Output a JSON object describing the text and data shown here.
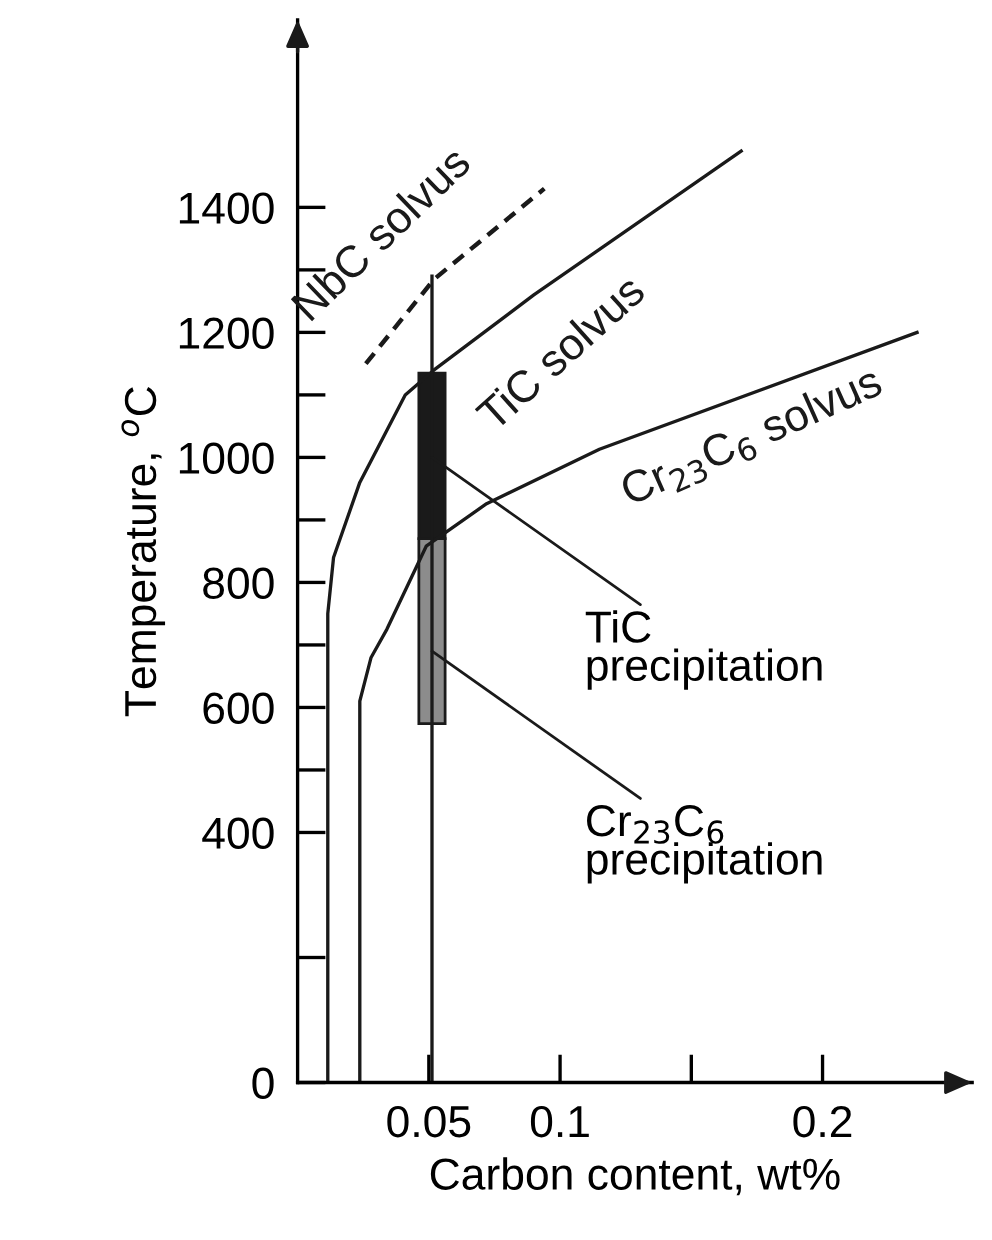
{
  "chart_data": {
    "type": "line",
    "xlabel": "Carbon content, wt%",
    "ylabel": "Temperature, $^{o}$C",
    "xlim": [
      0,
      0.257
    ],
    "ylim": [
      0,
      1700
    ],
    "xticks": [
      0.05,
      0.1,
      {
        "value": 0.15,
        "label": null
      },
      0.2
    ],
    "yticks": [
      0,
      {
        "value": 200,
        "label": null
      },
      400,
      {
        "value": 500,
        "label": null
      },
      600,
      {
        "value": 700,
        "label": null
      },
      800,
      {
        "value": 900,
        "label": null
      },
      1000,
      {
        "value": 1100,
        "label": null
      },
      1200,
      {
        "value": 1300,
        "label": null
      },
      1400
    ],
    "grid": false,
    "legend": false,
    "series": [
      {
        "name": "NbC solvus",
        "line_style": "dashed",
        "color": "#1a1a1a",
        "x": [
          0.026,
          0.052,
          0.094
        ],
        "values": [
          1150,
          1285,
          1430
        ]
      },
      {
        "name": "TiC solvus",
        "line_style": "solid",
        "color": "#1a1a1a",
        "x": [
          0.0115,
          0.0115,
          0.0137,
          0.0237,
          0.041,
          0.052,
          0.09,
          0.169
        ],
        "values": [
          0,
          750,
          840,
          960,
          1100,
          1140,
          1260,
          1490
        ]
      },
      {
        "name": "Cr$_{23}$C$_{6}$ solvus",
        "line_style": "solid",
        "color": "#1a1a1a",
        "x": [
          0.0237,
          0.0237,
          0.028,
          0.034,
          0.049,
          0.072,
          0.115,
          0.236
        ],
        "values": [
          0,
          610,
          680,
          725,
          858,
          926,
          1013,
          1200
        ]
      },
      {
        "line_style": "solid",
        "color": "#1a1a1a",
        "x": [
          0.0512,
          0.0512
        ],
        "values": [
          0,
          1290
        ]
      },
      {
        "type": "bar",
        "color": "#1a1a1a",
        "x": [
          0.0512
        ],
        "base": [
          870
        ],
        "values": [
          265
        ]
      },
      {
        "type": "bar",
        "color": "#8c8c8c",
        "x": [
          0.0512
        ],
        "base": [
          574
        ],
        "values": [
          296
        ]
      }
    ],
    "annotations": [
      {
        "text": "TiC\nprecipitation",
        "x": 0.0512,
        "y": 1000
      },
      {
        "text": "Cr$_{23}$C$_{6}$\nprecipitation",
        "x": 0.0512,
        "y": 690
      }
    ]
  }
}
